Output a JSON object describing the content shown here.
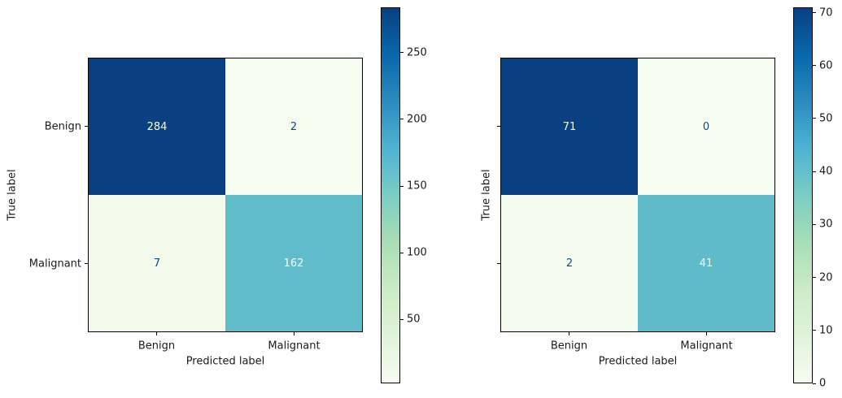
{
  "figure": {
    "background": "#ffffff"
  },
  "colors": {
    "colormap": "GnBu",
    "cmap_low": "#f7fcf0",
    "cmap_high": "#084081",
    "dark_text": "#0c4a87",
    "light_text": "#f7fcf0",
    "spine": "#000000"
  },
  "chart_data": [
    {
      "type": "heatmap",
      "name": "confusion-matrix-left",
      "x_categories": [
        "Benign",
        "Malignant"
      ],
      "y_categories": [
        "Benign",
        "Malignant"
      ],
      "values": [
        [
          284,
          2
        ],
        [
          7,
          162
        ]
      ],
      "xlabel": "Predicted label",
      "ylabel": "True label",
      "colormap": "GnBu",
      "y_tick_labels_shown": true,
      "cells": [
        {
          "value": "284",
          "bg": "#084081",
          "fg": "#f7fcf0"
        },
        {
          "value": "2",
          "bg": "#f7fcf0",
          "fg": "#0c4a87"
        },
        {
          "value": "7",
          "bg": "#f3faec",
          "fg": "#0c4a87"
        },
        {
          "value": "162",
          "bg": "#60bcca",
          "fg": "#f7fcf0"
        }
      ],
      "colorbar": {
        "vmin": 2,
        "vmax": 284,
        "ticks": [
          50,
          100,
          150,
          200,
          250
        ]
      }
    },
    {
      "type": "heatmap",
      "name": "confusion-matrix-right",
      "x_categories": [
        "Benign",
        "Malignant"
      ],
      "y_categories": [
        "",
        ""
      ],
      "values": [
        [
          71,
          0
        ],
        [
          2,
          41
        ]
      ],
      "xlabel": "Predicted label",
      "ylabel": "True label",
      "colormap": "GnBu",
      "y_tick_labels_shown": false,
      "cells": [
        {
          "value": "71",
          "bg": "#084081",
          "fg": "#f7fcf0"
        },
        {
          "value": "0",
          "bg": "#f7fcf0",
          "fg": "#0c4a87"
        },
        {
          "value": "2",
          "bg": "#f5fbee",
          "fg": "#0c4a87"
        },
        {
          "value": "41",
          "bg": "#5fbbca",
          "fg": "#f7fcf0"
        }
      ],
      "colorbar": {
        "vmin": 0,
        "vmax": 71,
        "ticks": [
          0,
          10,
          20,
          30,
          40,
          50,
          60,
          70
        ]
      }
    }
  ]
}
